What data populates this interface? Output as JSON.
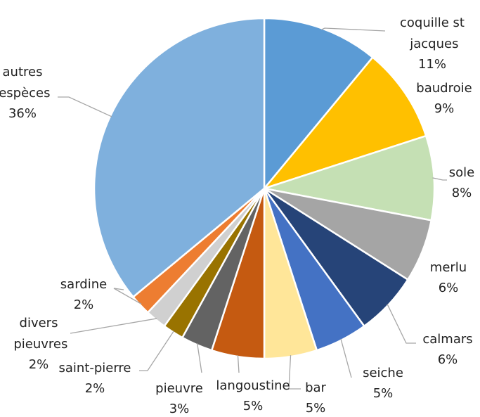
{
  "chart_data": {
    "type": "pie",
    "categories": [
      "coquille st jacques",
      "baudroie",
      "sole",
      "merlu",
      "calmars",
      "seiche",
      "bar",
      "langoustine",
      "pieuvre",
      "saint-pierre",
      "divers pieuvres",
      "sardine",
      "autres espèces"
    ],
    "values": [
      11,
      9,
      8,
      6,
      6,
      5,
      5,
      5,
      3,
      2,
      2,
      2,
      36
    ],
    "value_labels": [
      "11%",
      "9%",
      "8%",
      "6%",
      "6%",
      "5%",
      "5%",
      "5%",
      "3%",
      "2%",
      "2%",
      "2%",
      "36%"
    ],
    "colors": [
      "#5b9bd5",
      "#ffc000",
      "#c5e0b4",
      "#a5a5a5",
      "#264478",
      "#4472c4",
      "#ffe699",
      "#c55a11",
      "#636363",
      "#997300",
      "#d0d0d0",
      "#ed7d31",
      "#7fb0dd"
    ]
  }
}
